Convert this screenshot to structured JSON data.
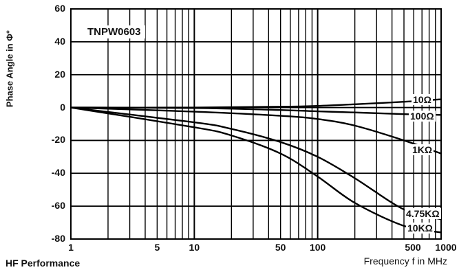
{
  "footer": {
    "left_label": "HF Performance"
  },
  "chart_data": {
    "type": "line",
    "title": "TNPW0603",
    "xlabel": "Frequency f in MHz",
    "ylabel": "Phase Angle in Φ°",
    "x_scale": "log",
    "xlim": [
      1,
      1000
    ],
    "ylim": [
      -80,
      60
    ],
    "grid": true,
    "x_ticks": [
      {
        "value": 1,
        "label": "1"
      },
      {
        "value": 5,
        "label": "5"
      },
      {
        "value": 10,
        "label": "10"
      },
      {
        "value": 50,
        "label": "50"
      },
      {
        "value": 100,
        "label": "100"
      },
      {
        "value": 500,
        "label": "500"
      },
      {
        "value": 1000,
        "label": "1000"
      }
    ],
    "y_ticks": [
      60,
      40,
      20,
      0,
      -20,
      -40,
      -60,
      -80
    ],
    "series": [
      {
        "name": "10Ω",
        "x": [
          1,
          10,
          50,
          100,
          200,
          500,
          1000
        ],
        "y": [
          0,
          0,
          0.5,
          1,
          2,
          3.5,
          5
        ]
      },
      {
        "name": "100Ω",
        "x": [
          1,
          10,
          50,
          100,
          200,
          500,
          1000
        ],
        "y": [
          0,
          -0.3,
          -1.5,
          -2.3,
          -3,
          -4,
          -4.5
        ]
      },
      {
        "name": "1KΩ",
        "x": [
          1,
          10,
          50,
          100,
          200,
          500,
          1000
        ],
        "y": [
          0,
          -2.5,
          -5,
          -7,
          -11,
          -20,
          -28
        ]
      },
      {
        "name": "4.75KΩ",
        "x": [
          1,
          10,
          20,
          50,
          100,
          200,
          500,
          1000
        ],
        "y": [
          0,
          -9,
          -13,
          -21,
          -30,
          -43,
          -62,
          -68
        ]
      },
      {
        "name": "10KΩ",
        "x": [
          1,
          10,
          20,
          50,
          100,
          200,
          500,
          1000
        ],
        "y": [
          0,
          -12,
          -17,
          -28,
          -42,
          -58,
          -72,
          -76
        ]
      }
    ]
  }
}
